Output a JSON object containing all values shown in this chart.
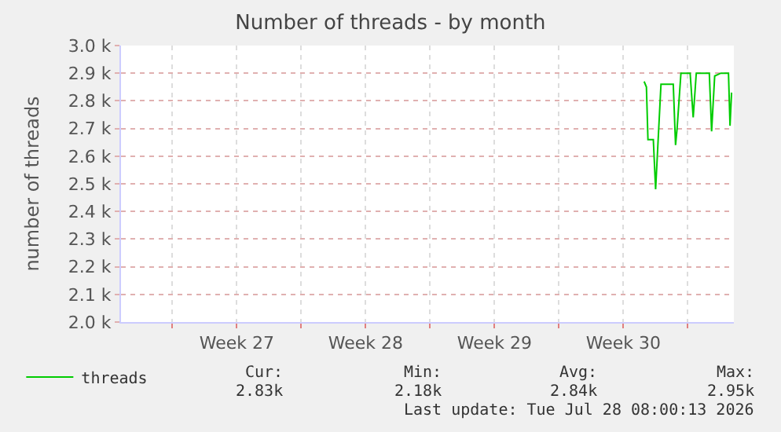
{
  "chart_data": {
    "type": "line",
    "title": "Number of threads - by month",
    "ylabel": "number of threads",
    "x": [
      "2026-07-24T15:00",
      "2026-07-24T18:00",
      "2026-07-24T20:00",
      "2026-07-25T03:00",
      "2026-07-25T06:00",
      "2026-07-25T13:00",
      "2026-07-25T17:00",
      "2026-07-26T05:00",
      "2026-07-26T08:00",
      "2026-07-26T10:00",
      "2026-07-26T15:00",
      "2026-07-27T03:00",
      "2026-07-27T07:00",
      "2026-07-27T11:00",
      "2026-07-28T04:00",
      "2026-07-28T07:00",
      "2026-07-28T11:00",
      "2026-07-28T19:00",
      "2026-07-29T05:00",
      "2026-07-29T07:00",
      "2026-07-29T09:00"
    ],
    "series": [
      {
        "name": "threads",
        "color": "#00cc00",
        "values": [
          2870,
          2850,
          2660,
          2660,
          2480,
          2860,
          2860,
          2860,
          2640,
          2700,
          2900,
          2900,
          2740,
          2900,
          2900,
          2690,
          2890,
          2900,
          2900,
          2710,
          2830
        ]
      }
    ],
    "xlim": [
      "2026-06-26T05:00",
      "2026-07-29T12:00"
    ],
    "xticks": [
      {
        "value": "2026-06-29",
        "label": null
      },
      {
        "value": "2026-07-02T12:00",
        "label": "Week 27"
      },
      {
        "value": "2026-07-06",
        "label": null
      },
      {
        "value": "2026-07-09T12:00",
        "label": "Week 28"
      },
      {
        "value": "2026-07-13",
        "label": null
      },
      {
        "value": "2026-07-16T12:00",
        "label": "Week 29"
      },
      {
        "value": "2026-07-20",
        "label": null
      },
      {
        "value": "2026-07-23T12:00",
        "label": "Week 30"
      },
      {
        "value": "2026-07-27",
        "label": null
      }
    ],
    "ylim": [
      2000,
      3000
    ],
    "yticks": [
      {
        "value": 2000,
        "label": "2.0 k"
      },
      {
        "value": 2100,
        "label": "2.1 k"
      },
      {
        "value": 2200,
        "label": "2.2 k"
      },
      {
        "value": 2300,
        "label": "2.3 k"
      },
      {
        "value": 2400,
        "label": "2.4 k"
      },
      {
        "value": 2500,
        "label": "2.5 k"
      },
      {
        "value": 2600,
        "label": "2.6 k"
      },
      {
        "value": 2700,
        "label": "2.7 k"
      },
      {
        "value": 2800,
        "label": "2.8 k"
      },
      {
        "value": 2900,
        "label": "2.9 k"
      },
      {
        "value": 3000,
        "label": "3.0 k"
      }
    ],
    "grid": true,
    "legend": "bottom left",
    "marker": "none",
    "line_style": "solid",
    "annotations": [
      "Cur:",
      "2.83k",
      "Min:",
      "2.18k",
      "Avg:",
      "2.84k",
      "Max:",
      "2.95k",
      "Last update: Tue Jul 28 08:00:13 2026"
    ]
  }
}
